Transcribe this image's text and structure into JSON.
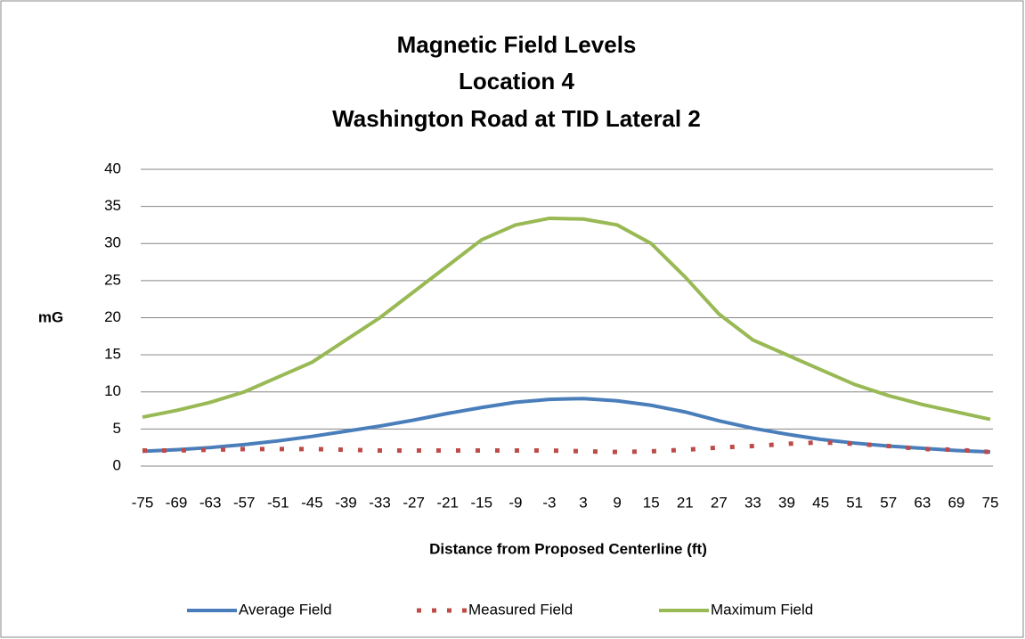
{
  "chart_data": {
    "type": "line",
    "title": [
      "Magnetic Field Levels",
      "Location 4",
      "Washington Road at TID Lateral 2"
    ],
    "y_label": "mG",
    "x_label": "Distance from Proposed Centerline (ft)",
    "x": [
      -75,
      -69,
      -63,
      -57,
      -51,
      -45,
      -39,
      -33,
      -27,
      -21,
      -15,
      -9,
      -3,
      3,
      9,
      15,
      21,
      27,
      33,
      39,
      45,
      51,
      57,
      63,
      69,
      75
    ],
    "xlim": [
      -75,
      75
    ],
    "xticks": [
      -75,
      -69,
      -63,
      -57,
      -51,
      -45,
      -39,
      -33,
      -27,
      -21,
      -15,
      -9,
      -3,
      3,
      9,
      15,
      21,
      27,
      33,
      39,
      45,
      51,
      57,
      63,
      69,
      75
    ],
    "ylim": [
      0,
      40
    ],
    "yticks": [
      0,
      5,
      10,
      15,
      20,
      25,
      30,
      35,
      40
    ],
    "grid": true,
    "legend": "bottom",
    "series": [
      {
        "name": "Average Field",
        "color": "#4a7ebb",
        "style": "solid",
        "values": [
          2.0,
          2.2,
          2.5,
          2.9,
          3.4,
          4.0,
          4.7,
          5.4,
          6.2,
          7.1,
          7.9,
          8.6,
          9.0,
          9.1,
          8.8,
          8.2,
          7.3,
          6.1,
          5.1,
          4.3,
          3.6,
          3.1,
          2.7,
          2.4,
          2.1,
          1.9
        ]
      },
      {
        "name": "Measured Field",
        "color": "#be4b48",
        "style": "dotted",
        "values": [
          2.1,
          2.1,
          2.2,
          2.3,
          2.3,
          2.3,
          2.2,
          2.1,
          2.1,
          2.1,
          2.1,
          2.1,
          2.1,
          2.0,
          1.9,
          2.0,
          2.2,
          2.5,
          2.7,
          3.0,
          3.2,
          3.0,
          2.7,
          2.3,
          2.2,
          1.9
        ]
      },
      {
        "name": "Maximum Field",
        "color": "#98b954",
        "style": "solid",
        "values": [
          6.6,
          7.5,
          8.6,
          10.0,
          12.0,
          14.0,
          17.0,
          20.0,
          23.5,
          27.0,
          30.5,
          32.5,
          33.4,
          33.3,
          32.5,
          30.0,
          25.5,
          20.5,
          17.0,
          15.0,
          13.0,
          11.0,
          9.5,
          8.3,
          7.3,
          6.3
        ]
      }
    ]
  }
}
